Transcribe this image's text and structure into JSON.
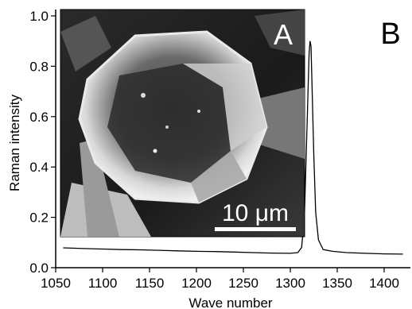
{
  "panel_labels": {
    "inset": "A",
    "main": "B"
  },
  "inset": {
    "scale_bar_label": "10 μm",
    "description_icon": "sem-micrograph-image"
  },
  "chart_data": {
    "type": "line",
    "xlabel": "Wave number",
    "ylabel": "Raman intensity",
    "xlim": [
      1050,
      1420
    ],
    "ylim": [
      0,
      1.02
    ],
    "x_ticks": [
      1050,
      1100,
      1150,
      1200,
      1250,
      1300,
      1350,
      1400
    ],
    "x_tick_labels": [
      "1050",
      "1100",
      "1150",
      "1200",
      "1250",
      "1300",
      "1350",
      "1400"
    ],
    "y_ticks": [
      0.0,
      0.2,
      0.4,
      0.6,
      0.8,
      1.0
    ],
    "y_tick_labels": [
      "0.0",
      "0.2",
      "0.4",
      "0.6",
      "0.8",
      "1.0"
    ],
    "grid": false,
    "legend": "none",
    "series": [
      {
        "color": "#000000",
        "points": [
          [
            1058,
            0.079
          ],
          [
            1080,
            0.076
          ],
          [
            1100,
            0.074
          ],
          [
            1120,
            0.072
          ],
          [
            1140,
            0.071
          ],
          [
            1160,
            0.069
          ],
          [
            1180,
            0.067
          ],
          [
            1200,
            0.065
          ],
          [
            1220,
            0.064
          ],
          [
            1240,
            0.062
          ],
          [
            1260,
            0.06
          ],
          [
            1280,
            0.058
          ],
          [
            1300,
            0.057
          ],
          [
            1308,
            0.06
          ],
          [
            1312,
            0.08
          ],
          [
            1315,
            0.2
          ],
          [
            1318,
            0.58
          ],
          [
            1320,
            0.85
          ],
          [
            1321,
            0.9
          ],
          [
            1322,
            0.88
          ],
          [
            1323,
            0.75
          ],
          [
            1325,
            0.45
          ],
          [
            1327,
            0.22
          ],
          [
            1330,
            0.11
          ],
          [
            1335,
            0.072
          ],
          [
            1345,
            0.065
          ],
          [
            1360,
            0.06
          ],
          [
            1380,
            0.057
          ],
          [
            1400,
            0.055
          ],
          [
            1420,
            0.054
          ]
        ]
      }
    ]
  }
}
